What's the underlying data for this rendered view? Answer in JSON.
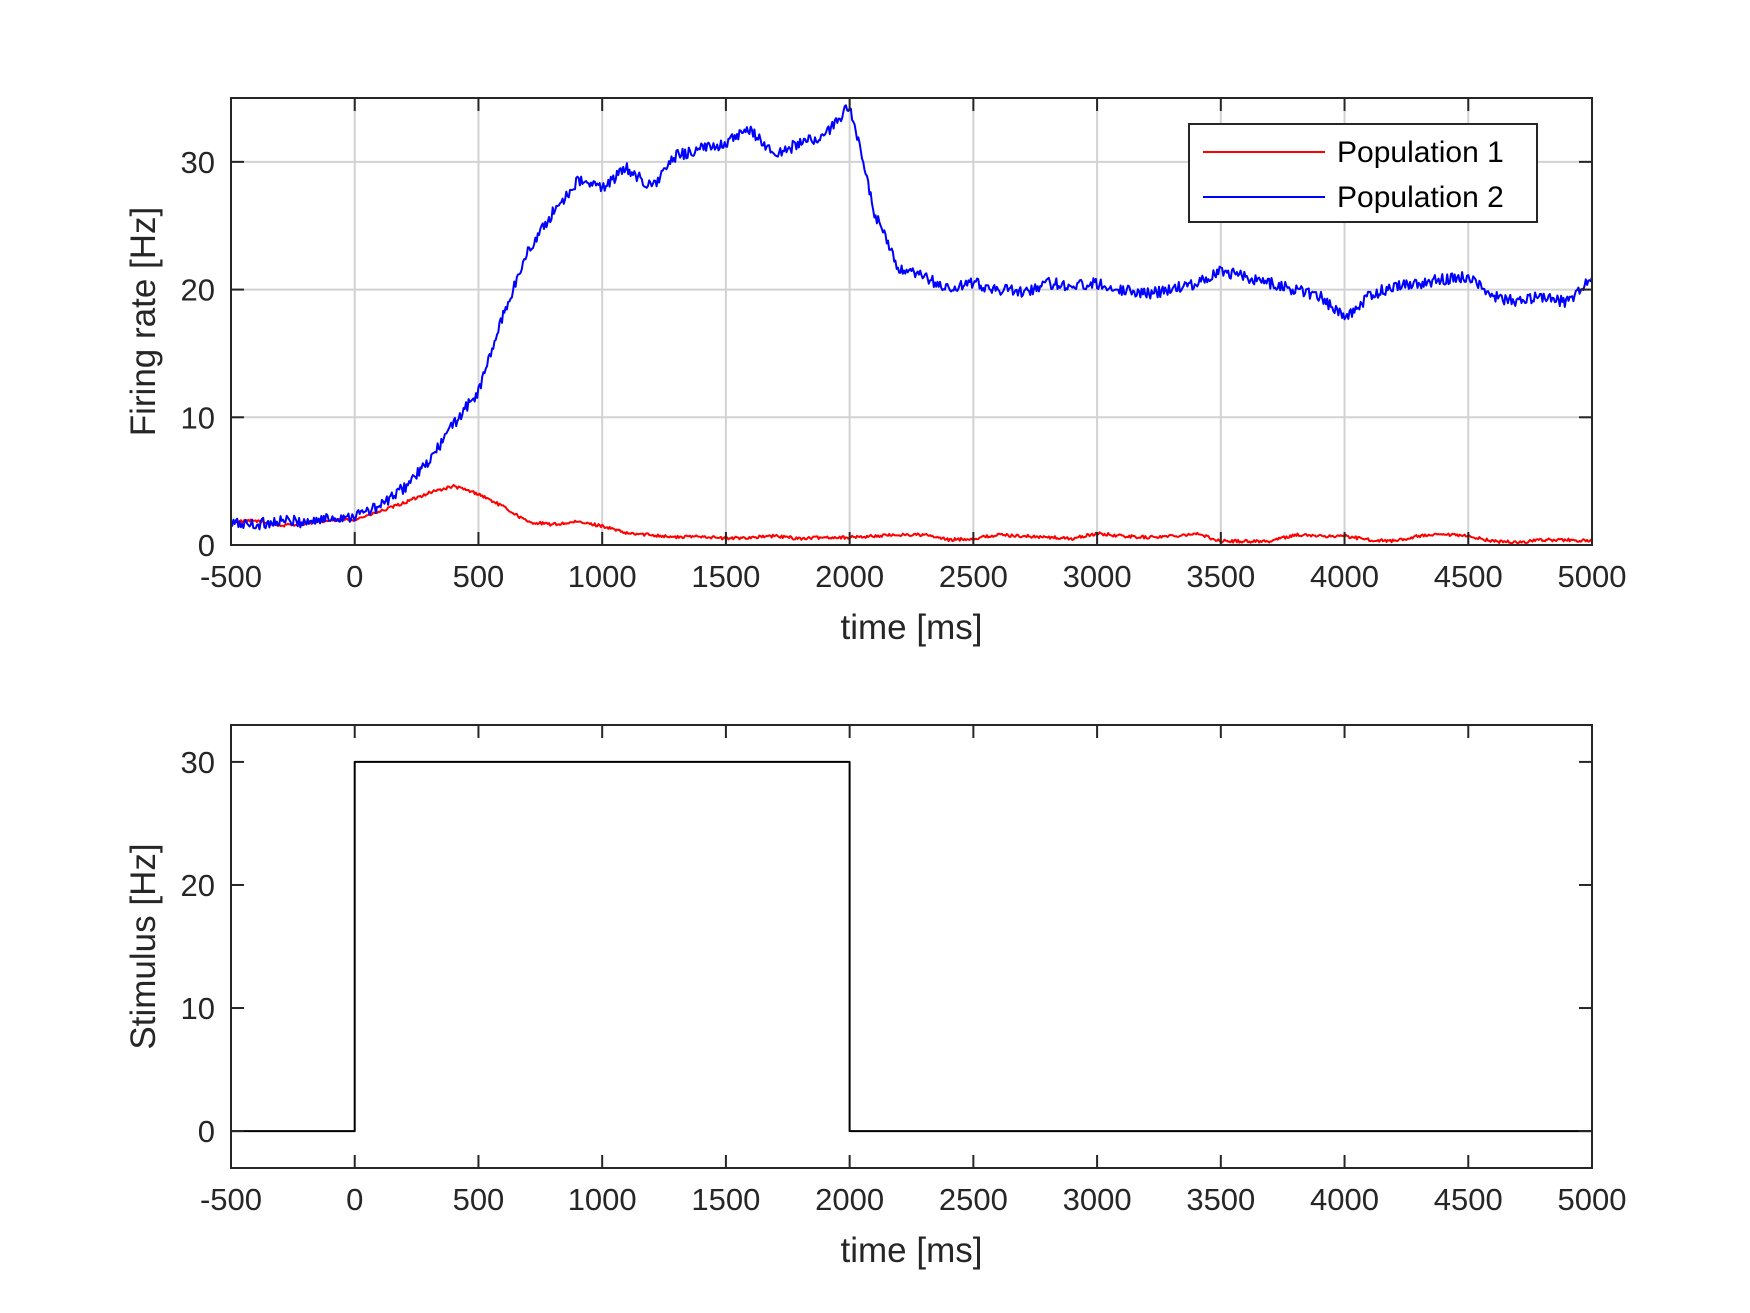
{
  "chart_data": [
    {
      "type": "line",
      "xlabel": "time [ms]",
      "ylabel": "Firing rate [Hz]",
      "xlim": [
        -500,
        5000
      ],
      "ylim": [
        0,
        35
      ],
      "xticks": [
        "-500",
        "0",
        "500",
        "1000",
        "1500",
        "2000",
        "2500",
        "3000",
        "3500",
        "4000",
        "4500",
        "5000"
      ],
      "yticks": [
        "0",
        "10",
        "20",
        "30"
      ],
      "grid": true,
      "legend_position": "top-right",
      "series": [
        {
          "name": "Population 1",
          "color": "#ff0000",
          "x": [
            -500,
            -400,
            -300,
            -200,
            -100,
            0,
            100,
            200,
            300,
            400,
            500,
            600,
            700,
            800,
            900,
            1000,
            1100,
            1200,
            1300,
            1400,
            1500,
            1600,
            1700,
            1800,
            1900,
            2000,
            2100,
            2200,
            2300,
            2400,
            2500,
            2600,
            2700,
            2800,
            2900,
            3000,
            3100,
            3200,
            3300,
            3400,
            3500,
            3600,
            3700,
            3800,
            3900,
            4000,
            4100,
            4200,
            4300,
            4400,
            4500,
            4600,
            4700,
            4800,
            4900,
            5000
          ],
          "y": [
            1.8,
            1.9,
            1.5,
            1.7,
            1.9,
            2.0,
            2.6,
            3.3,
            4.1,
            4.6,
            4.0,
            3.0,
            1.8,
            1.6,
            1.8,
            1.5,
            0.9,
            0.8,
            0.6,
            0.7,
            0.5,
            0.6,
            0.7,
            0.5,
            0.6,
            0.6,
            0.7,
            0.8,
            0.8,
            0.4,
            0.5,
            0.8,
            0.7,
            0.6,
            0.5,
            0.9,
            0.7,
            0.6,
            0.7,
            0.9,
            0.3,
            0.3,
            0.3,
            0.8,
            0.7,
            0.7,
            0.4,
            0.3,
            0.7,
            0.8,
            0.7,
            0.3,
            0.2,
            0.4,
            0.4,
            0.3
          ]
        },
        {
          "name": "Population 2",
          "color": "#0000ff",
          "x": [
            -500,
            -400,
            -300,
            -200,
            -100,
            0,
            100,
            200,
            300,
            400,
            500,
            600,
            700,
            800,
            900,
            1000,
            1100,
            1200,
            1300,
            1400,
            1500,
            1600,
            1700,
            1800,
            1900,
            2000,
            2100,
            2200,
            2300,
            2400,
            2500,
            2600,
            2700,
            2800,
            2900,
            3000,
            3100,
            3200,
            3300,
            3400,
            3500,
            3600,
            3700,
            3800,
            3900,
            4000,
            4100,
            4200,
            4300,
            4400,
            4500,
            4600,
            4700,
            4800,
            4900,
            5000
          ],
          "y": [
            1.7,
            1.6,
            1.9,
            1.8,
            2.1,
            2.3,
            3.0,
            4.5,
            6.5,
            9.5,
            12.0,
            18.0,
            23.0,
            26.0,
            28.5,
            28.0,
            29.5,
            28.0,
            30.5,
            31.0,
            31.5,
            32.5,
            30.5,
            31.5,
            32.0,
            34.5,
            26.0,
            21.5,
            21.0,
            20.0,
            20.5,
            20.0,
            19.8,
            20.5,
            20.3,
            20.5,
            20.0,
            19.7,
            20.0,
            20.5,
            21.5,
            21.0,
            20.5,
            20.0,
            19.5,
            17.8,
            19.5,
            20.3,
            20.5,
            20.8,
            21.0,
            19.5,
            19.0,
            19.5,
            19.0,
            21.0
          ]
        }
      ]
    },
    {
      "type": "line",
      "xlabel": "time [ms]",
      "ylabel": "Stimulus [Hz]",
      "xlim": [
        -500,
        5000
      ],
      "ylim": [
        -3,
        33
      ],
      "xticks": [
        "-500",
        "0",
        "500",
        "1000",
        "1500",
        "2000",
        "2500",
        "3000",
        "3500",
        "4000",
        "4500",
        "5000"
      ],
      "yticks": [
        "0",
        "10",
        "20",
        "30"
      ],
      "grid": false,
      "series": [
        {
          "color": "#000000",
          "x": [
            -500,
            0,
            0,
            2000,
            2000,
            5000
          ],
          "y": [
            0,
            0,
            30,
            30,
            0,
            0
          ]
        }
      ]
    }
  ]
}
